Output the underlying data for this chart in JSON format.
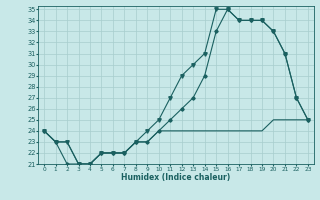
{
  "title": "",
  "xlabel": "Humidex (Indice chaleur)",
  "background_color": "#c8e8e8",
  "grid_color": "#a8cece",
  "line_color": "#1a6060",
  "x": [
    0,
    1,
    2,
    3,
    4,
    5,
    6,
    7,
    8,
    9,
    10,
    11,
    12,
    13,
    14,
    15,
    16,
    17,
    18,
    19,
    20,
    21,
    22,
    23
  ],
  "y_top": [
    24,
    23,
    23,
    21,
    21,
    22,
    22,
    22,
    23,
    24,
    25,
    27,
    29,
    30,
    31,
    35,
    35,
    34,
    34,
    34,
    33,
    31,
    27,
    25
  ],
  "y_bot": [
    24,
    23,
    23,
    21,
    21,
    22,
    22,
    22,
    23,
    23,
    24,
    24,
    24,
    24,
    24,
    24,
    24,
    24,
    24,
    24,
    25,
    25,
    25,
    25
  ],
  "y_mid": [
    24,
    23,
    21,
    21,
    21,
    22,
    22,
    22,
    23,
    23,
    24,
    25,
    26,
    27,
    29,
    33,
    35,
    34,
    34,
    34,
    33,
    31,
    27,
    25
  ],
  "ylim": [
    21,
    35
  ],
  "yticks": [
    21,
    22,
    23,
    24,
    25,
    26,
    27,
    28,
    29,
    30,
    31,
    32,
    33,
    34,
    35
  ],
  "xlim": [
    -0.5,
    23.5
  ],
  "xticks": [
    0,
    1,
    2,
    3,
    4,
    5,
    6,
    7,
    8,
    9,
    10,
    11,
    12,
    13,
    14,
    15,
    16,
    17,
    18,
    19,
    20,
    21,
    22,
    23
  ],
  "tick_fontsize": 5,
  "xlabel_fontsize": 5.5
}
